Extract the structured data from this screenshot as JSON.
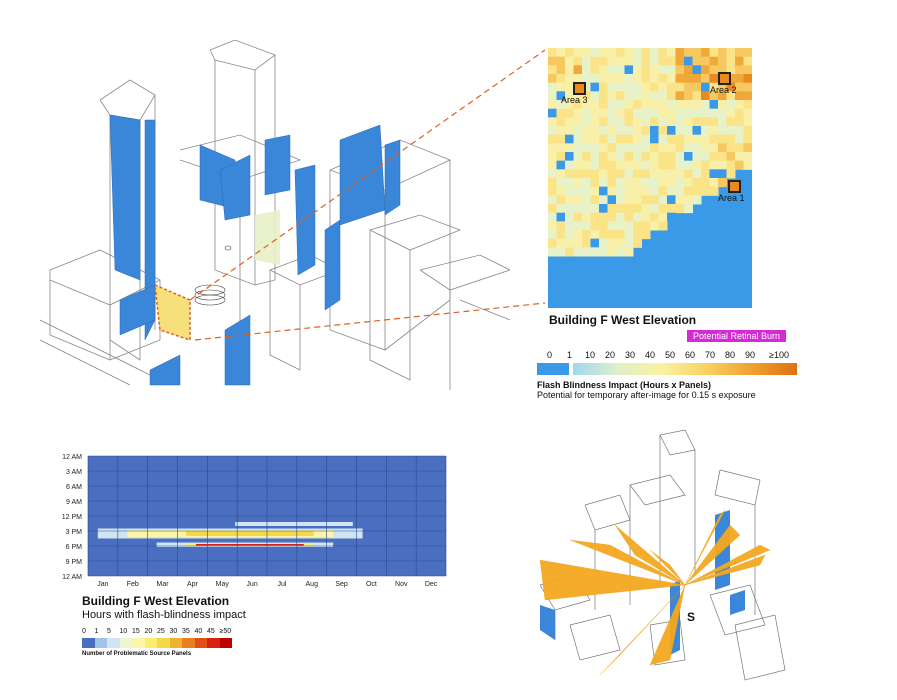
{
  "elevation_panel": {
    "title": "Building F West Elevation",
    "badge": "Potential Retinal Burn",
    "areas": [
      "Area 1",
      "Area 2",
      "Area 3"
    ]
  },
  "flash_legend": {
    "ticks": [
      "0",
      "1",
      "10",
      "20",
      "30",
      "40",
      "50",
      "60",
      "70",
      "80",
      "90",
      "≥100"
    ],
    "title": "Flash Blindness Impact (Hours x Panels)",
    "subtitle": "Potential for temporary after-image for 0.15 s exposure"
  },
  "heatmap": {
    "title": "Building F West Elevation",
    "subtitle": "Hours with flash-blindness impact",
    "legend_ticks": [
      "0",
      "1",
      "5",
      "10",
      "15",
      "20",
      "25",
      "30",
      "35",
      "40",
      "45",
      "≥50"
    ],
    "legend_title": "Number of Problematic Source Panels"
  },
  "sun_marker": "S",
  "chart_data": {
    "type": "heatmap",
    "title": "Building F West Elevation",
    "subtitle": "Hours with flash-blindness impact",
    "x_labels": [
      "Jan",
      "Feb",
      "Mar",
      "Apr",
      "May",
      "Jun",
      "Jul",
      "Aug",
      "Sep",
      "Oct",
      "Nov",
      "Dec"
    ],
    "y_labels": [
      "12 AM",
      "3 AM",
      "6 AM",
      "9 AM",
      "12 PM",
      "3 PM",
      "6 PM",
      "9 PM",
      "12 AM"
    ],
    "color_scale": [
      "#4a6fc0",
      "#9fc4e8",
      "#cfe5f2",
      "#eef6d0",
      "#fbf6a8",
      "#fbee6e",
      "#f5d84a",
      "#f0b030",
      "#e88020",
      "#e05018",
      "#d82010",
      "#c00000"
    ],
    "bands": [
      {
        "hour_start": 14.5,
        "hour_end": 16.5,
        "day_start": 10,
        "day_end": 280,
        "level": 2
      },
      {
        "hour_start": 14.8,
        "hour_end": 16.2,
        "day_start": 40,
        "day_end": 250,
        "level": 4
      },
      {
        "hour_start": 15.0,
        "hour_end": 16.0,
        "day_start": 100,
        "day_end": 230,
        "level": 6
      },
      {
        "hour_start": 13.2,
        "hour_end": 14.0,
        "day_start": 150,
        "day_end": 270,
        "level": 2
      },
      {
        "hour_start": 17.3,
        "hour_end": 18.2,
        "day_start": 70,
        "day_end": 250,
        "level": 2
      },
      {
        "hour_start": 17.5,
        "hour_end": 18.0,
        "day_start": 100,
        "day_end": 230,
        "level": 5
      },
      {
        "hour_start": 17.6,
        "hour_end": 17.9,
        "day_start": 110,
        "day_end": 220,
        "level": 10
      }
    ]
  }
}
